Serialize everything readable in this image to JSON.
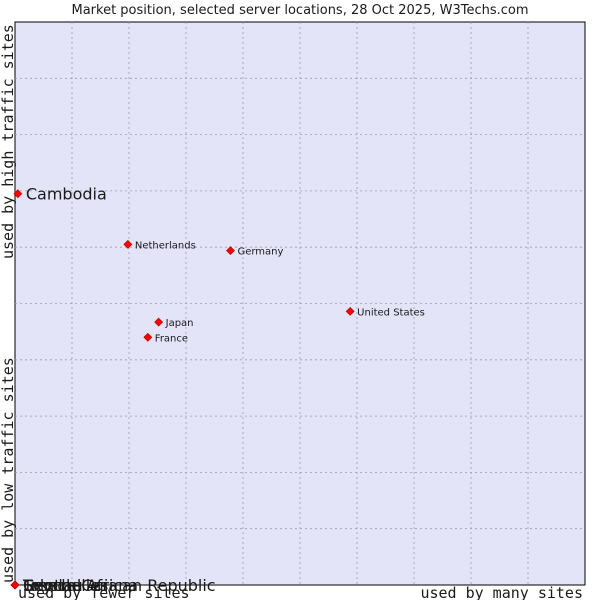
{
  "chart_data": {
    "type": "scatter",
    "title": "Market position, selected server locations, 28 Oct 2025, W3Techs.com",
    "xlabel_low": "used by fewer sites",
    "xlabel_high": "used by many sites",
    "ylabel_low": "used by low traffic sites",
    "ylabel_high": "used by high traffic sites",
    "xlim": [
      0,
      100
    ],
    "ylim": [
      0,
      100
    ],
    "grid": true,
    "points": [
      {
        "label": "Cambodia",
        "x": 0.5,
        "y": 69.5,
        "highlight": true
      },
      {
        "label": "Netherlands",
        "x": 19.8,
        "y": 60.5,
        "highlight": false
      },
      {
        "label": "Germany",
        "x": 37.8,
        "y": 59.4,
        "highlight": false
      },
      {
        "label": "United States",
        "x": 58.8,
        "y": 48.6,
        "highlight": false
      },
      {
        "label": "Japan",
        "x": 25.2,
        "y": 46.7,
        "highlight": false
      },
      {
        "label": "France",
        "x": 23.3,
        "y": 44.0,
        "highlight": false
      },
      {
        "label": "Central African Republic",
        "x": 0.0,
        "y": 0.0,
        "highlight": true
      },
      {
        "label": "Seychelles",
        "x": 0.0,
        "y": 0.0,
        "highlight": true
      },
      {
        "label": "Tokelau",
        "x": 0.0,
        "y": 0.0,
        "highlight": true
      },
      {
        "label": "French Guiana",
        "x": 0.0,
        "y": 0.0,
        "highlight": true
      }
    ]
  },
  "colors": {
    "plot_bg": "#e4e4f8",
    "grid": "#9a9ab4",
    "marker": "#ff0000",
    "text": "#1a1a1a"
  }
}
